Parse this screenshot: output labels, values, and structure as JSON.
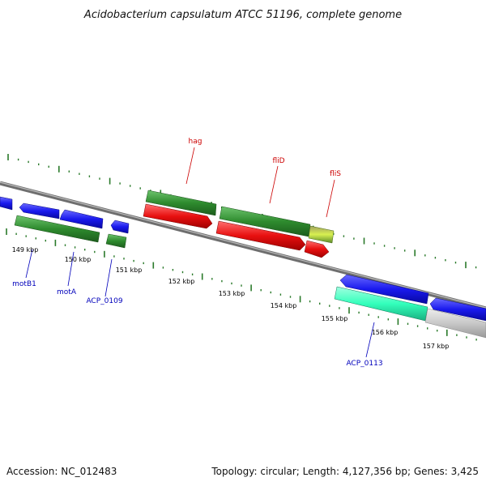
{
  "title": "Acidobacterium capsulatum ATCC 51196, complete genome",
  "footer": {
    "accession": "Accession: NC_012483",
    "topology": "Topology: circular; Length: 4,127,356 bp; Genes: 3,425"
  },
  "tick_labels": [
    "149 kbp",
    "150 kbp",
    "151 kbp",
    "152 kbp",
    "153 kbp",
    "154 kbp",
    "155 kbp",
    "156 kbp",
    "157 kbp"
  ],
  "gene_labels": {
    "red": [
      "hag",
      "fliD",
      "fliS"
    ],
    "blue": [
      "motB1",
      "motA",
      "ACP_0109",
      "ACP_0113"
    ]
  },
  "colors": {
    "backbone": "#7a7a7a",
    "forward_gene": "#1a1aee",
    "cds": "#2e8b2e",
    "reverse_gene": "#e81010",
    "highlight_gene": "#33ffbb",
    "yellow_gene": "#c8e040",
    "gray_gene": "#c8c8c8",
    "tick_marks": "#2a7a2a"
  }
}
